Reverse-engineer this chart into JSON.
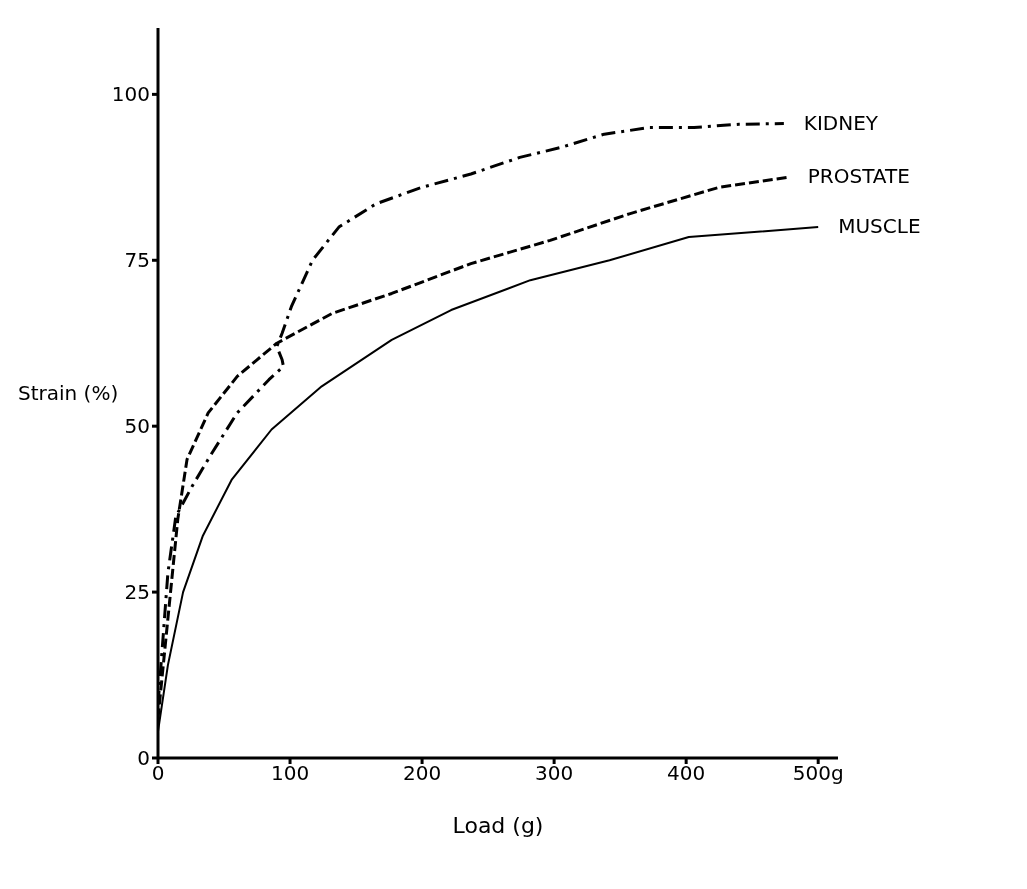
{
  "chart_data": {
    "type": "line",
    "xlabel": "Load (g)",
    "ylabel": "Strain (%)",
    "xlim": [
      0,
      515
    ],
    "xticks": [
      0,
      100,
      200,
      300,
      400,
      {
        "value": 500,
        "label": "500g"
      }
    ],
    "ylim": [
      0,
      110
    ],
    "yticks": [
      0,
      25,
      50,
      75,
      100
    ],
    "grid": false,
    "legend": false,
    "marker": "none",
    "series": [
      {
        "name": "KIDNEY",
        "color": "#000000",
        "line_style": "dashdot",
        "x": [
          0,
          7.5,
          13.5,
          26,
          41,
          60,
          84,
          95,
          94,
          90,
          94,
          101,
          117,
          137,
          165,
          200,
          237,
          274,
          305,
          338,
          372,
          406,
          440,
          474
        ],
        "values": [
          8,
          27.9,
          36.4,
          41,
          46,
          52,
          57,
          59,
          60,
          62,
          64,
          68,
          75,
          80,
          83.5,
          86,
          88,
          90.5,
          92,
          94,
          95,
          95,
          95.5,
          95.6
        ]
      },
      {
        "name": "PROSTATE",
        "color": "#000000",
        "line_style": "dashed",
        "x": [
          0,
          4,
          11,
          15,
          22,
          38,
          60,
          90,
          132,
          177,
          237,
          297,
          357,
          425,
          477
        ],
        "values": [
          6,
          14,
          28,
          36,
          45,
          52,
          57.5,
          62.5,
          67,
          70,
          74.5,
          78,
          82,
          86,
          87.5
        ]
      },
      {
        "name": "MUSCLE",
        "color": "#000000",
        "line_style": "solid",
        "x": [
          0,
          7.5,
          19,
          34,
          56,
          86,
          124,
          177,
          222,
          282,
          342,
          402,
          500
        ],
        "values": [
          4,
          14,
          25,
          33.5,
          42,
          49.5,
          56,
          63,
          67.5,
          72,
          75,
          78.5,
          80
        ]
      }
    ]
  }
}
